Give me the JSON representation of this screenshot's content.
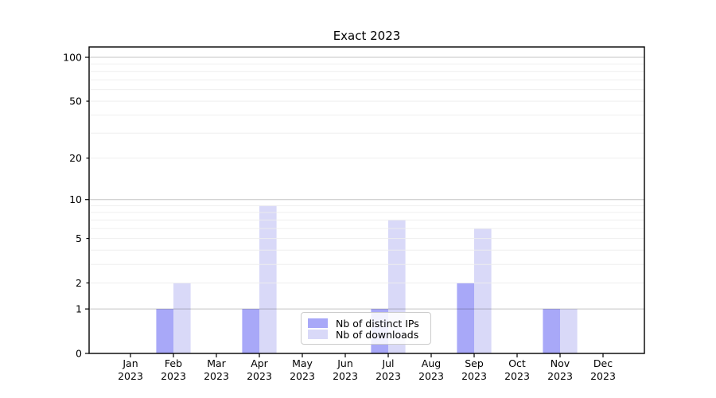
{
  "chart_data": {
    "type": "bar",
    "title": "Exact 2023",
    "xlabel": "",
    "ylabel": "",
    "yscale": "log1p",
    "categories": [
      "Jan",
      "Feb",
      "Mar",
      "Apr",
      "May",
      "Jun",
      "Jul",
      "Aug",
      "Sep",
      "Oct",
      "Nov",
      "Dec"
    ],
    "category_subline": "2023",
    "series": [
      {
        "name": "Nb of distinct IPs",
        "color": "#a8a8f8",
        "values": [
          0,
          1,
          0,
          1,
          0,
          0,
          1,
          0,
          2,
          0,
          1,
          0
        ]
      },
      {
        "name": "Nb of downloads",
        "color": "#d9d9f8",
        "values": [
          0,
          2,
          0,
          9,
          0,
          0,
          7,
          0,
          6,
          0,
          1,
          0
        ]
      }
    ],
    "y_ticks_labeled": [
      0,
      1,
      2,
      5,
      10,
      20,
      50,
      100
    ],
    "y_ticks_major": [
      0,
      1,
      10,
      100
    ],
    "y_ticks_minor_unlabeled": [
      3,
      4,
      6,
      7,
      8,
      9,
      30,
      40,
      60,
      70,
      80,
      90
    ],
    "ylim": [
      0,
      117
    ],
    "grid": "both",
    "legend_position": "lower center",
    "colors": {
      "spine": "#000000",
      "major_grid": "#c4c4c4",
      "minor_grid": "#ededed",
      "tick_label": "#000000",
      "background": "#ffffff"
    }
  }
}
